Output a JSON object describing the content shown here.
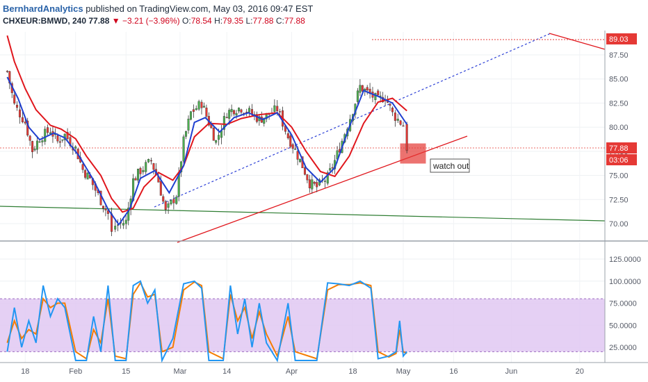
{
  "header": {
    "author": "BernhardAnalytics",
    "published_text": " published on TradingView.com, May 03, 2016 09:47 EST",
    "symbol": "CHXEUR:BMWD, 240",
    "last": "77.88",
    "change": "▼ −3.21 (−3.96%)",
    "open_label": "O:",
    "open": "78.54",
    "high_label": "H:",
    "high": "79.35",
    "low_label": "L:",
    "low": "77.88",
    "close_label": "C:",
    "close": "77.88"
  },
  "annotation": {
    "text": "watch out"
  },
  "colors": {
    "up": "#4caf50",
    "down": "#e53935",
    "sma_red": "#e0161c",
    "sma_blue": "#1e3fd0",
    "trend_green": "#2e7d32",
    "stoch_k": "#2196f3",
    "stoch_d": "#f57c00",
    "stoch_band": "#e1c8f2",
    "target": "#e53935"
  },
  "chart_data": {
    "type": "line",
    "price_axis": {
      "ticks": [
        70.0,
        72.5,
        75.0,
        77.5,
        80.0,
        82.5,
        85.0,
        87.5
      ],
      "labels": [
        "70.00",
        "72.50",
        "75.00",
        "77.50",
        "80.00",
        "82.50",
        "85.00",
        "87.50"
      ],
      "ylim": [
        68.5,
        90.5
      ]
    },
    "price_labels": {
      "target": "89.03",
      "current": "77.88",
      "countdown": "03:06"
    },
    "time_axis": {
      "labels": [
        "18",
        "Feb",
        "15",
        "Mar",
        "14",
        "Apr",
        "18",
        "May",
        "16",
        "Jun",
        "20"
      ]
    },
    "price_series_close": [
      {
        "x": "2016-01-13",
        "y": 85.8
      },
      {
        "x": "2016-01-15",
        "y": 82.3
      },
      {
        "x": "2016-01-18",
        "y": 80.5
      },
      {
        "x": "2016-01-20",
        "y": 77.6
      },
      {
        "x": "2016-01-22",
        "y": 78.9
      },
      {
        "x": "2016-01-25",
        "y": 79.7
      },
      {
        "x": "2016-01-27",
        "y": 78.5
      },
      {
        "x": "2016-01-29",
        "y": 79.2
      },
      {
        "x": "2016-02-01",
        "y": 77.8
      },
      {
        "x": "2016-02-03",
        "y": 75.6
      },
      {
        "x": "2016-02-05",
        "y": 74.6
      },
      {
        "x": "2016-02-08",
        "y": 72.4
      },
      {
        "x": "2016-02-10",
        "y": 71.0
      },
      {
        "x": "2016-02-11",
        "y": 69.0
      },
      {
        "x": "2016-02-12",
        "y": 69.8
      },
      {
        "x": "2016-02-15",
        "y": 70.2
      },
      {
        "x": "2016-02-17",
        "y": 74.5
      },
      {
        "x": "2016-02-19",
        "y": 75.5
      },
      {
        "x": "2016-02-22",
        "y": 76.5
      },
      {
        "x": "2016-02-24",
        "y": 74.4
      },
      {
        "x": "2016-02-26",
        "y": 71.2
      },
      {
        "x": "2016-02-29",
        "y": 73.0
      },
      {
        "x": "2016-03-02",
        "y": 78.5
      },
      {
        "x": "2016-03-04",
        "y": 81.5
      },
      {
        "x": "2016-03-07",
        "y": 82.5
      },
      {
        "x": "2016-03-09",
        "y": 80.5
      },
      {
        "x": "2016-03-11",
        "y": 78.5
      },
      {
        "x": "2016-03-14",
        "y": 81.5
      },
      {
        "x": "2016-03-16",
        "y": 81.9
      },
      {
        "x": "2016-03-18",
        "y": 82.0
      },
      {
        "x": "2016-03-21",
        "y": 81.4
      },
      {
        "x": "2016-03-23",
        "y": 80.8
      },
      {
        "x": "2016-03-25",
        "y": 81.2
      },
      {
        "x": "2016-03-28",
        "y": 81.9
      },
      {
        "x": "2016-03-31",
        "y": 79.0
      },
      {
        "x": "2016-04-02",
        "y": 77.6
      },
      {
        "x": "2016-04-04",
        "y": 76.0
      },
      {
        "x": "2016-04-06",
        "y": 74.2
      },
      {
        "x": "2016-04-08",
        "y": 73.8
      },
      {
        "x": "2016-04-11",
        "y": 74.8
      },
      {
        "x": "2016-04-13",
        "y": 76.5
      },
      {
        "x": "2016-04-15",
        "y": 78.6
      },
      {
        "x": "2016-04-18",
        "y": 81.8
      },
      {
        "x": "2016-04-20",
        "y": 84.2
      },
      {
        "x": "2016-04-22",
        "y": 83.6
      },
      {
        "x": "2016-04-25",
        "y": 82.8
      },
      {
        "x": "2016-04-27",
        "y": 83.2
      },
      {
        "x": "2016-04-29",
        "y": 81.4
      },
      {
        "x": "2016-05-02",
        "y": 80.2
      },
      {
        "x": "2016-05-03",
        "y": 77.88
      }
    ],
    "sma_red": [
      {
        "x": "2016-01-13",
        "y": 89.5
      },
      {
        "x": "2016-01-15",
        "y": 86.8
      },
      {
        "x": "2016-01-18",
        "y": 84.0
      },
      {
        "x": "2016-01-21",
        "y": 81.8
      },
      {
        "x": "2016-01-25",
        "y": 80.2
      },
      {
        "x": "2016-01-28",
        "y": 79.8
      },
      {
        "x": "2016-02-01",
        "y": 78.8
      },
      {
        "x": "2016-02-04",
        "y": 77.0
      },
      {
        "x": "2016-02-08",
        "y": 75.0
      },
      {
        "x": "2016-02-11",
        "y": 72.6
      },
      {
        "x": "2016-02-14",
        "y": 71.2
      },
      {
        "x": "2016-02-17",
        "y": 71.6
      },
      {
        "x": "2016-02-20",
        "y": 73.8
      },
      {
        "x": "2016-02-24",
        "y": 75.3
      },
      {
        "x": "2016-02-28",
        "y": 74.5
      },
      {
        "x": "2016-03-02",
        "y": 76.0
      },
      {
        "x": "2016-03-05",
        "y": 79.0
      },
      {
        "x": "2016-03-09",
        "y": 80.4
      },
      {
        "x": "2016-03-14",
        "y": 80.3
      },
      {
        "x": "2016-03-18",
        "y": 80.9
      },
      {
        "x": "2016-03-23",
        "y": 81.3
      },
      {
        "x": "2016-03-28",
        "y": 81.5
      },
      {
        "x": "2016-04-01",
        "y": 80.0
      },
      {
        "x": "2016-04-05",
        "y": 77.5
      },
      {
        "x": "2016-04-09",
        "y": 75.4
      },
      {
        "x": "2016-04-13",
        "y": 74.9
      },
      {
        "x": "2016-04-17",
        "y": 77.0
      },
      {
        "x": "2016-04-21",
        "y": 80.4
      },
      {
        "x": "2016-04-25",
        "y": 82.6
      },
      {
        "x": "2016-04-29",
        "y": 83.0
      },
      {
        "x": "2016-05-03",
        "y": 81.7
      }
    ],
    "sma_blue": [
      {
        "x": "2016-01-13",
        "y": 85.2
      },
      {
        "x": "2016-01-16",
        "y": 83.0
      },
      {
        "x": "2016-01-19",
        "y": 80.0
      },
      {
        "x": "2016-01-22",
        "y": 78.7
      },
      {
        "x": "2016-01-26",
        "y": 79.4
      },
      {
        "x": "2016-01-29",
        "y": 78.9
      },
      {
        "x": "2016-02-02",
        "y": 77.0
      },
      {
        "x": "2016-02-06",
        "y": 74.5
      },
      {
        "x": "2016-02-10",
        "y": 71.5
      },
      {
        "x": "2016-02-13",
        "y": 69.9
      },
      {
        "x": "2016-02-16",
        "y": 71.5
      },
      {
        "x": "2016-02-19",
        "y": 74.7
      },
      {
        "x": "2016-02-23",
        "y": 75.5
      },
      {
        "x": "2016-02-27",
        "y": 73.2
      },
      {
        "x": "2016-03-02",
        "y": 76.0
      },
      {
        "x": "2016-03-05",
        "y": 80.5
      },
      {
        "x": "2016-03-08",
        "y": 81.0
      },
      {
        "x": "2016-03-12",
        "y": 79.5
      },
      {
        "x": "2016-03-16",
        "y": 81.0
      },
      {
        "x": "2016-03-20",
        "y": 81.5
      },
      {
        "x": "2016-03-24",
        "y": 80.8
      },
      {
        "x": "2016-03-28",
        "y": 81.5
      },
      {
        "x": "2016-04-01",
        "y": 79.2
      },
      {
        "x": "2016-04-05",
        "y": 75.8
      },
      {
        "x": "2016-04-09",
        "y": 74.3
      },
      {
        "x": "2016-04-13",
        "y": 75.8
      },
      {
        "x": "2016-04-17",
        "y": 80.0
      },
      {
        "x": "2016-04-21",
        "y": 83.8
      },
      {
        "x": "2016-04-25",
        "y": 83.2
      },
      {
        "x": "2016-04-29",
        "y": 82.5
      },
      {
        "x": "2016-05-03",
        "y": 80.3
      }
    ],
    "stoch_band": [
      20,
      80
    ],
    "stoch_axis": {
      "ticks": [
        25,
        50,
        75,
        100,
        125
      ],
      "labels": [
        "25.0000",
        "50.0000",
        "75.0000",
        "100.0000",
        "125.0000"
      ],
      "ylim": [
        12,
        140
      ]
    },
    "stoch_k": [
      {
        "x": "2016-01-13",
        "y": 20
      },
      {
        "x": "2016-01-15",
        "y": 70
      },
      {
        "x": "2016-01-17",
        "y": 25
      },
      {
        "x": "2016-01-19",
        "y": 55
      },
      {
        "x": "2016-01-21",
        "y": 30
      },
      {
        "x": "2016-01-23",
        "y": 95
      },
      {
        "x": "2016-01-25",
        "y": 60
      },
      {
        "x": "2016-01-27",
        "y": 80
      },
      {
        "x": "2016-01-29",
        "y": 70
      },
      {
        "x": "2016-02-01",
        "y": 10
      },
      {
        "x": "2016-02-04",
        "y": 10
      },
      {
        "x": "2016-02-06",
        "y": 60
      },
      {
        "x": "2016-02-08",
        "y": 20
      },
      {
        "x": "2016-02-10",
        "y": 95
      },
      {
        "x": "2016-02-12",
        "y": 10
      },
      {
        "x": "2016-02-15",
        "y": 10
      },
      {
        "x": "2016-02-17",
        "y": 95
      },
      {
        "x": "2016-02-19",
        "y": 100
      },
      {
        "x": "2016-02-21",
        "y": 75
      },
      {
        "x": "2016-02-23",
        "y": 90
      },
      {
        "x": "2016-02-25",
        "y": 10
      },
      {
        "x": "2016-02-28",
        "y": 35
      },
      {
        "x": "2016-03-02",
        "y": 97
      },
      {
        "x": "2016-03-05",
        "y": 100
      },
      {
        "x": "2016-03-07",
        "y": 92
      },
      {
        "x": "2016-03-09",
        "y": 10
      },
      {
        "x": "2016-03-13",
        "y": 10
      },
      {
        "x": "2016-03-15",
        "y": 95
      },
      {
        "x": "2016-03-17",
        "y": 40
      },
      {
        "x": "2016-03-19",
        "y": 80
      },
      {
        "x": "2016-03-21",
        "y": 25
      },
      {
        "x": "2016-03-23",
        "y": 75
      },
      {
        "x": "2016-03-25",
        "y": 30
      },
      {
        "x": "2016-03-28",
        "y": 10
      },
      {
        "x": "2016-03-31",
        "y": 75
      },
      {
        "x": "2016-04-02",
        "y": 10
      },
      {
        "x": "2016-04-08",
        "y": 10
      },
      {
        "x": "2016-04-11",
        "y": 98
      },
      {
        "x": "2016-04-14",
        "y": 97
      },
      {
        "x": "2016-04-17",
        "y": 95
      },
      {
        "x": "2016-04-20",
        "y": 100
      },
      {
        "x": "2016-04-23",
        "y": 92
      },
      {
        "x": "2016-04-25",
        "y": 12
      },
      {
        "x": "2016-04-28",
        "y": 15
      },
      {
        "x": "2016-04-30",
        "y": 20
      },
      {
        "x": "2016-05-01",
        "y": 55
      },
      {
        "x": "2016-05-02",
        "y": 15
      },
      {
        "x": "2016-05-03",
        "y": 20
      }
    ],
    "stoch_d": [
      {
        "x": "2016-01-13",
        "y": 30
      },
      {
        "x": "2016-01-15",
        "y": 55
      },
      {
        "x": "2016-01-17",
        "y": 35
      },
      {
        "x": "2016-01-19",
        "y": 45
      },
      {
        "x": "2016-01-21",
        "y": 40
      },
      {
        "x": "2016-01-23",
        "y": 80
      },
      {
        "x": "2016-01-25",
        "y": 70
      },
      {
        "x": "2016-01-27",
        "y": 75
      },
      {
        "x": "2016-01-29",
        "y": 75
      },
      {
        "x": "2016-02-01",
        "y": 20
      },
      {
        "x": "2016-02-04",
        "y": 12
      },
      {
        "x": "2016-02-06",
        "y": 45
      },
      {
        "x": "2016-02-08",
        "y": 30
      },
      {
        "x": "2016-02-10",
        "y": 80
      },
      {
        "x": "2016-02-12",
        "y": 15
      },
      {
        "x": "2016-02-15",
        "y": 12
      },
      {
        "x": "2016-02-17",
        "y": 85
      },
      {
        "x": "2016-02-19",
        "y": 98
      },
      {
        "x": "2016-02-21",
        "y": 82
      },
      {
        "x": "2016-02-23",
        "y": 85
      },
      {
        "x": "2016-02-25",
        "y": 20
      },
      {
        "x": "2016-02-28",
        "y": 25
      },
      {
        "x": "2016-03-02",
        "y": 90
      },
      {
        "x": "2016-03-05",
        "y": 99
      },
      {
        "x": "2016-03-07",
        "y": 95
      },
      {
        "x": "2016-03-09",
        "y": 20
      },
      {
        "x": "2016-03-13",
        "y": 12
      },
      {
        "x": "2016-03-15",
        "y": 85
      },
      {
        "x": "2016-03-17",
        "y": 55
      },
      {
        "x": "2016-03-19",
        "y": 70
      },
      {
        "x": "2016-03-21",
        "y": 35
      },
      {
        "x": "2016-03-23",
        "y": 65
      },
      {
        "x": "2016-03-25",
        "y": 40
      },
      {
        "x": "2016-03-28",
        "y": 15
      },
      {
        "x": "2016-03-31",
        "y": 60
      },
      {
        "x": "2016-04-02",
        "y": 20
      },
      {
        "x": "2016-04-08",
        "y": 12
      },
      {
        "x": "2016-04-11",
        "y": 90
      },
      {
        "x": "2016-04-14",
        "y": 96
      },
      {
        "x": "2016-04-17",
        "y": 96
      },
      {
        "x": "2016-04-20",
        "y": 98
      },
      {
        "x": "2016-04-23",
        "y": 95
      },
      {
        "x": "2016-04-25",
        "y": 20
      },
      {
        "x": "2016-04-28",
        "y": 14
      },
      {
        "x": "2016-04-30",
        "y": 18
      },
      {
        "x": "2016-05-01",
        "y": 45
      },
      {
        "x": "2016-05-02",
        "y": 20
      },
      {
        "x": "2016-05-03",
        "y": 18
      }
    ]
  }
}
